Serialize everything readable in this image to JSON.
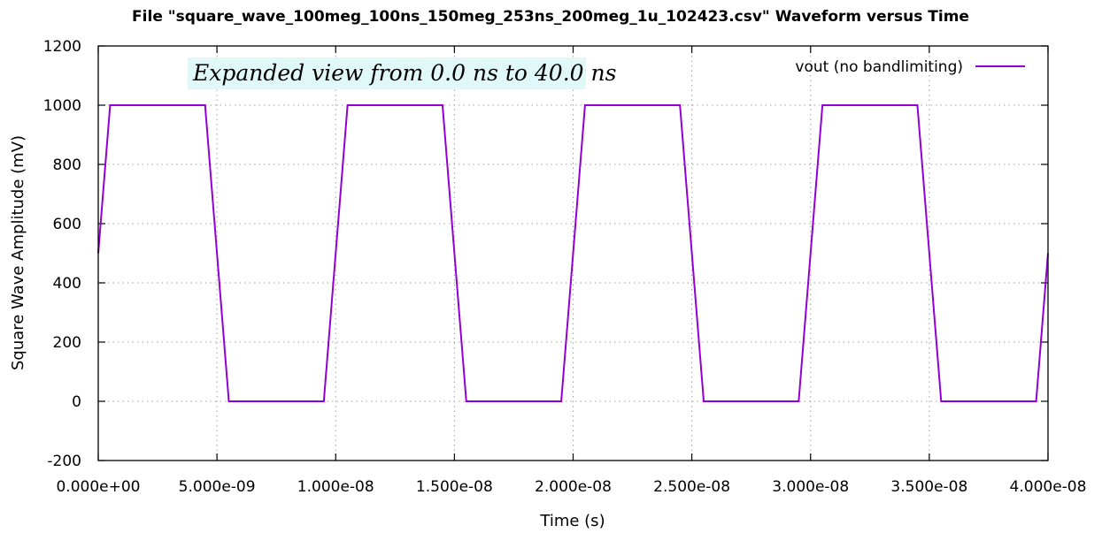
{
  "chart_data": {
    "type": "line",
    "title": "File \"square_wave_100meg_100ns_150meg_253ns_200meg_1u_102423.csv\" Waveform versus Time",
    "xlabel": "Time (s)",
    "ylabel": "Square Wave Amplitude (mV)",
    "xlim": [
      0,
      4e-08
    ],
    "ylim": [
      -200,
      1200
    ],
    "x_ticks": [
      "0.000e+00",
      "5.000e-09",
      "1.000e-08",
      "1.500e-08",
      "2.000e-08",
      "2.500e-08",
      "3.000e-08",
      "3.500e-08",
      "4.000e-08"
    ],
    "x_tick_values": [
      0,
      5e-09,
      1e-08,
      1.5e-08,
      2e-08,
      2.5e-08,
      3e-08,
      3.5e-08,
      4e-08
    ],
    "y_ticks": [
      "-200",
      "0",
      "200",
      "400",
      "600",
      "800",
      "1000",
      "1200"
    ],
    "y_tick_values": [
      -200,
      0,
      200,
      400,
      600,
      800,
      1000,
      1200
    ],
    "grid": true,
    "legend_position": "top-right",
    "annotation": "Expanded view from 0.0 ns to 40.0 ns",
    "series": [
      {
        "name": "vout (no bandlimiting)",
        "color": "#9400d3",
        "x": [
          0,
          5e-10,
          4.5e-09,
          5.5e-09,
          9.5e-09,
          1.05e-08,
          1.45e-08,
          1.55e-08,
          1.95e-08,
          2.05e-08,
          2.45e-08,
          2.55e-08,
          2.95e-08,
          3.05e-08,
          3.45e-08,
          3.55e-08,
          3.95e-08,
          4e-08
        ],
        "y": [
          500,
          1000,
          1000,
          0,
          0,
          1000,
          1000,
          0,
          0,
          1000,
          1000,
          0,
          0,
          1000,
          1000,
          0,
          0,
          500
        ]
      }
    ]
  },
  "colors": {
    "annotation_background": "#e0f8f8",
    "line": "#9400d3"
  }
}
